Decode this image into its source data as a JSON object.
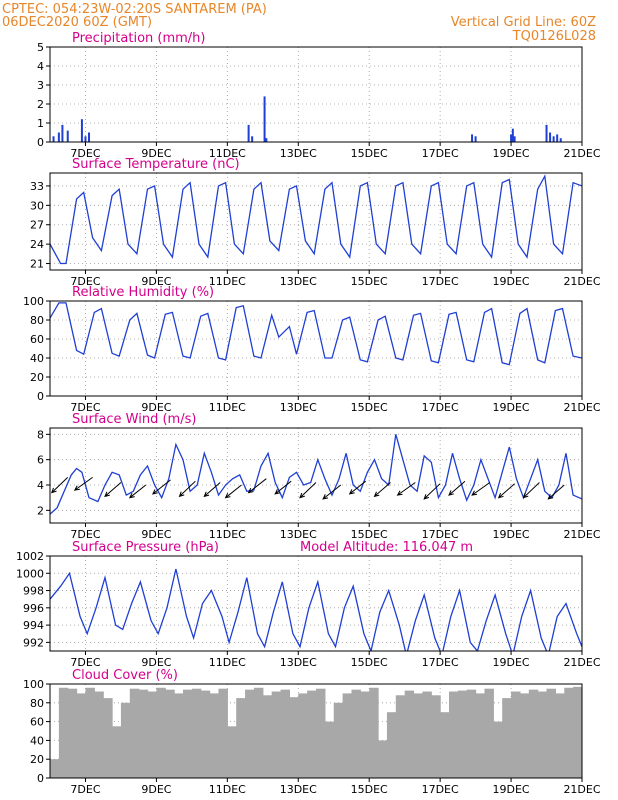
{
  "header": {
    "line1": "CPTEC:   054:23W-02:20S   SANTAREM (PA)",
    "line2": "06DEC2020 60Z (GMT)",
    "grid_note": "Vertical Grid Line: 60Z",
    "code": "TQ0126L028"
  },
  "colors": {
    "header": "#e8862a",
    "panel_title": "#d4008c",
    "series": "#1f3fd4",
    "cloud": "#a8a8a8",
    "arrows": "#000000"
  },
  "chart_data": [
    {
      "type": "bar",
      "title": "Precipitation (mm/h)",
      "xlim": [
        0,
        15
      ],
      "ylim": [
        0,
        5
      ],
      "yticks": [
        0,
        1,
        2,
        3,
        4,
        5
      ],
      "xticks": [
        1,
        3,
        5,
        7,
        9,
        11,
        13,
        15
      ],
      "xticklabels": [
        "7DEC",
        "9DEC",
        "11DEC",
        "13DEC",
        "15DEC",
        "17DEC",
        "19DEC",
        "21DEC"
      ],
      "x": [
        0.1,
        0.25,
        0.35,
        0.5,
        0.9,
        1.0,
        1.1,
        5.6,
        5.7,
        6.05,
        6.1,
        11.9,
        12.0,
        13.0,
        13.05,
        13.1,
        14.0,
        14.1,
        14.2,
        14.3,
        14.4
      ],
      "values": [
        0.3,
        0.5,
        0.9,
        0.6,
        1.2,
        0.3,
        0.5,
        0.9,
        0.3,
        2.4,
        0.2,
        0.4,
        0.3,
        0.4,
        0.7,
        0.3,
        0.9,
        0.5,
        0.3,
        0.4,
        0.2
      ]
    },
    {
      "type": "line",
      "title": "Surface Temperature (nC)",
      "xlim": [
        0,
        15
      ],
      "ylim": [
        20,
        35
      ],
      "yticks": [
        21,
        24,
        27,
        30,
        33
      ],
      "xticks": [
        1,
        3,
        5,
        7,
        9,
        11,
        13,
        15
      ],
      "xticklabels": [
        "7DEC",
        "9DEC",
        "11DEC",
        "13DEC",
        "15DEC",
        "17DEC",
        "19DEC",
        "21DEC"
      ],
      "x": [
        0.0,
        0.3,
        0.45,
        0.75,
        0.95,
        1.2,
        1.45,
        1.75,
        1.95,
        2.2,
        2.45,
        2.75,
        2.95,
        3.2,
        3.45,
        3.75,
        3.95,
        4.2,
        4.45,
        4.75,
        4.95,
        5.2,
        5.45,
        5.75,
        5.95,
        6.2,
        6.45,
        6.75,
        6.95,
        7.2,
        7.45,
        7.75,
        7.95,
        8.2,
        8.45,
        8.75,
        8.95,
        9.2,
        9.45,
        9.75,
        9.95,
        10.2,
        10.45,
        10.75,
        10.95,
        11.2,
        11.45,
        11.75,
        11.95,
        12.2,
        12.45,
        12.75,
        12.95,
        13.2,
        13.45,
        13.75,
        13.95,
        14.2,
        14.45,
        14.75,
        15.0
      ],
      "values": [
        24.0,
        21.0,
        21.0,
        31.0,
        32.0,
        25.0,
        23.0,
        31.5,
        32.5,
        24.0,
        22.5,
        32.5,
        33.0,
        24.0,
        22.0,
        32.5,
        33.5,
        24.0,
        22.0,
        33.0,
        33.5,
        24.0,
        22.5,
        32.5,
        33.5,
        24.5,
        23.0,
        32.5,
        33.0,
        24.5,
        22.5,
        32.5,
        33.5,
        24.0,
        22.0,
        33.0,
        33.5,
        24.0,
        22.5,
        33.0,
        33.5,
        24.0,
        22.5,
        33.0,
        33.5,
        24.0,
        22.5,
        33.0,
        33.5,
        24.0,
        22.0,
        33.5,
        34.0,
        24.0,
        22.0,
        32.5,
        34.5,
        24.0,
        22.5,
        33.5,
        33.0
      ]
    },
    {
      "type": "line",
      "title": "Relative Humidity (%)",
      "xlim": [
        0,
        15
      ],
      "ylim": [
        0,
        100
      ],
      "yticks": [
        0,
        20,
        40,
        60,
        80,
        100
      ],
      "xticks": [
        1,
        3,
        5,
        7,
        9,
        11,
        13,
        15
      ],
      "xticklabels": [
        "7DEC",
        "9DEC",
        "11DEC",
        "13DEC",
        "15DEC",
        "17DEC",
        "19DEC",
        "21DEC"
      ],
      "x": [
        0.0,
        0.25,
        0.45,
        0.75,
        0.95,
        1.25,
        1.45,
        1.75,
        1.95,
        2.25,
        2.45,
        2.75,
        2.95,
        3.25,
        3.45,
        3.75,
        3.95,
        4.25,
        4.45,
        4.75,
        4.95,
        5.25,
        5.45,
        5.75,
        5.95,
        6.25,
        6.45,
        6.75,
        6.95,
        7.25,
        7.45,
        7.75,
        7.95,
        8.25,
        8.45,
        8.75,
        8.95,
        9.25,
        9.45,
        9.75,
        9.95,
        10.25,
        10.45,
        10.75,
        10.95,
        11.25,
        11.45,
        11.75,
        11.95,
        12.25,
        12.45,
        12.75,
        12.95,
        13.25,
        13.45,
        13.75,
        13.95,
        14.25,
        14.45,
        14.75,
        15.0
      ],
      "values": [
        82,
        98,
        98,
        48,
        44,
        88,
        92,
        45,
        42,
        80,
        87,
        43,
        40,
        86,
        88,
        42,
        40,
        84,
        87,
        40,
        38,
        93,
        95,
        42,
        40,
        85,
        62,
        73,
        44,
        88,
        90,
        40,
        40,
        80,
        83,
        38,
        36,
        80,
        84,
        40,
        38,
        85,
        87,
        37,
        35,
        86,
        88,
        38,
        36,
        88,
        92,
        35,
        33,
        87,
        92,
        38,
        35,
        90,
        92,
        42,
        40
      ]
    },
    {
      "type": "line",
      "title": "Surface Wind (m/s)",
      "xlim": [
        0,
        15
      ],
      "ylim": [
        1,
        8.5
      ],
      "yticks": [
        2,
        4,
        6,
        8
      ],
      "xticks": [
        1,
        3,
        5,
        7,
        9,
        11,
        13,
        15
      ],
      "xticklabels": [
        "7DEC",
        "9DEC",
        "11DEC",
        "13DEC",
        "15DEC",
        "17DEC",
        "19DEC",
        "21DEC"
      ],
      "x": [
        0.0,
        0.2,
        0.4,
        0.6,
        0.75,
        0.9,
        1.1,
        1.35,
        1.55,
        1.75,
        1.95,
        2.15,
        2.35,
        2.55,
        2.75,
        2.95,
        3.15,
        3.35,
        3.55,
        3.75,
        3.95,
        4.15,
        4.35,
        4.55,
        4.75,
        4.95,
        5.15,
        5.35,
        5.55,
        5.75,
        5.95,
        6.15,
        6.35,
        6.55,
        6.75,
        6.95,
        7.15,
        7.35,
        7.55,
        7.75,
        7.95,
        8.15,
        8.35,
        8.55,
        8.75,
        8.95,
        9.15,
        9.35,
        9.55,
        9.75,
        9.95,
        10.15,
        10.35,
        10.55,
        10.75,
        10.95,
        11.15,
        11.35,
        11.55,
        11.75,
        11.95,
        12.15,
        12.35,
        12.55,
        12.75,
        12.95,
        13.15,
        13.35,
        13.55,
        13.75,
        13.95,
        14.15,
        14.35,
        14.55,
        14.75,
        15.0
      ],
      "values": [
        1.7,
        2.2,
        3.5,
        4.8,
        5.3,
        5.0,
        3.0,
        2.7,
        4.0,
        5.0,
        4.8,
        3.2,
        3.5,
        4.8,
        5.5,
        4.0,
        3.0,
        4.5,
        7.2,
        6.0,
        3.5,
        4.0,
        6.5,
        5.0,
        3.2,
        4.0,
        4.5,
        4.8,
        3.5,
        3.6,
        5.5,
        6.5,
        4.2,
        3.0,
        4.6,
        5.0,
        4.0,
        4.2,
        6.0,
        4.5,
        3.2,
        4.5,
        6.5,
        4.0,
        3.5,
        5.0,
        6.0,
        4.5,
        4.0,
        8.0,
        6.0,
        4.0,
        3.5,
        6.3,
        5.8,
        3.0,
        4.0,
        6.5,
        4.5,
        2.8,
        4.0,
        6.0,
        4.5,
        3.0,
        5.0,
        7.0,
        4.5,
        3.0,
        4.5,
        6.0,
        3.5,
        3.0,
        4.0,
        6.5,
        3.2,
        2.9
      ],
      "wind_vectors": {
        "x": [
          0.5,
          1.2,
          2.0,
          2.7,
          3.4,
          4.1,
          4.8,
          5.4,
          6.1,
          6.8,
          7.5,
          8.2,
          8.9,
          9.6,
          10.3,
          11.0,
          11.7,
          12.4,
          13.1,
          13.8,
          14.5
        ],
        "y": [
          4.6,
          4.6,
          4.2,
          4.0,
          4.4,
          4.3,
          4.2,
          4.0,
          4.5,
          4.3,
          4.2,
          4.0,
          4.3,
          4.2,
          4.2,
          4.1,
          4.3,
          4.2,
          4.1,
          4.2,
          4.0
        ],
        "dx": [
          -0.45,
          -0.5,
          -0.45,
          -0.45,
          -0.5,
          -0.45,
          -0.45,
          -0.45,
          -0.5,
          -0.45,
          -0.45,
          -0.5,
          -0.45,
          -0.45,
          -0.5,
          -0.45,
          -0.45,
          -0.5,
          -0.45,
          -0.45,
          -0.45
        ],
        "dy": [
          -1.2,
          -1.0,
          -1.1,
          -1.0,
          -1.1,
          -1.2,
          -1.1,
          -1.0,
          -1.1,
          -1.0,
          -1.2,
          -1.1,
          -1.0,
          -1.1,
          -1.0,
          -1.2,
          -1.1,
          -1.0,
          -1.1,
          -1.2,
          -1.1
        ]
      }
    },
    {
      "type": "line",
      "title": "Surface Pressure (hPa)",
      "annotation": "Model Altitude: 116.047 m",
      "xlim": [
        0,
        15
      ],
      "ylim": [
        991,
        1002
      ],
      "yticks": [
        992,
        994,
        996,
        998,
        1000,
        1002
      ],
      "xticks": [
        1,
        3,
        5,
        7,
        9,
        11,
        13,
        15
      ],
      "xticklabels": [
        "7DEC",
        "9DEC",
        "11DEC",
        "13DEC",
        "15DEC",
        "17DEC",
        "19DEC",
        "21DEC"
      ],
      "x": [
        0.0,
        0.3,
        0.55,
        0.85,
        1.05,
        1.3,
        1.55,
        1.85,
        2.05,
        2.3,
        2.55,
        2.85,
        3.05,
        3.3,
        3.55,
        3.85,
        4.05,
        4.3,
        4.55,
        4.85,
        5.05,
        5.3,
        5.55,
        5.85,
        6.05,
        6.3,
        6.55,
        6.85,
        7.05,
        7.3,
        7.55,
        7.85,
        8.05,
        8.3,
        8.55,
        8.85,
        9.05,
        9.3,
        9.55,
        9.85,
        10.05,
        10.3,
        10.55,
        10.85,
        11.05,
        11.3,
        11.55,
        11.85,
        12.05,
        12.3,
        12.55,
        12.85,
        13.05,
        13.3,
        13.55,
        13.85,
        14.05,
        14.3,
        14.55,
        14.85,
        15.0
      ],
      "values": [
        997.0,
        998.5,
        1000.0,
        995.0,
        993.0,
        996.0,
        999.5,
        994.0,
        993.5,
        996.5,
        999.0,
        994.5,
        993.0,
        996.0,
        1000.5,
        995.0,
        992.5,
        996.5,
        998.0,
        995.0,
        992.0,
        995.5,
        999.5,
        993.0,
        991.5,
        995.5,
        999.0,
        993.0,
        991.5,
        996.0,
        999.0,
        993.0,
        991.5,
        996.0,
        998.5,
        993.0,
        991.0,
        995.5,
        998.0,
        994.0,
        990.5,
        994.5,
        997.5,
        992.5,
        990.5,
        995.0,
        998.0,
        992.0,
        991.0,
        994.5,
        997.5,
        993.0,
        990.5,
        995.0,
        998.0,
        992.5,
        990.5,
        995.0,
        996.5,
        993.0,
        991.5
      ]
    },
    {
      "type": "bar",
      "title": "Cloud Cover (%)",
      "xlim": [
        0,
        15
      ],
      "ylim": [
        0,
        100
      ],
      "yticks": [
        0,
        20,
        40,
        60,
        80,
        100
      ],
      "xticks": [
        1,
        3,
        5,
        7,
        9,
        11,
        13,
        15
      ],
      "xticklabels": [
        "7DEC",
        "9DEC",
        "11DEC",
        "13DEC",
        "15DEC",
        "17DEC",
        "19DEC",
        "21DEC"
      ],
      "x": [
        0.0,
        0.25,
        0.5,
        0.75,
        1.0,
        1.25,
        1.5,
        1.75,
        2.0,
        2.25,
        2.5,
        2.75,
        3.0,
        3.25,
        3.5,
        3.75,
        4.0,
        4.25,
        4.5,
        4.75,
        5.0,
        5.25,
        5.5,
        5.75,
        6.0,
        6.25,
        6.5,
        6.75,
        7.0,
        7.25,
        7.5,
        7.75,
        8.0,
        8.25,
        8.5,
        8.75,
        9.0,
        9.25,
        9.5,
        9.75,
        10.0,
        10.25,
        10.5,
        10.75,
        11.0,
        11.25,
        11.5,
        11.75,
        12.0,
        12.25,
        12.5,
        12.75,
        13.0,
        13.25,
        13.5,
        13.75,
        14.0,
        14.25,
        14.5,
        14.75
      ],
      "values": [
        20,
        96,
        95,
        90,
        96,
        92,
        85,
        55,
        80,
        95,
        94,
        92,
        96,
        94,
        90,
        94,
        95,
        93,
        90,
        95,
        55,
        85,
        94,
        96,
        88,
        92,
        94,
        86,
        90,
        93,
        95,
        60,
        80,
        90,
        94,
        92,
        96,
        40,
        70,
        88,
        93,
        90,
        92,
        88,
        70,
        92,
        93,
        94,
        90,
        95,
        60,
        85,
        92,
        90,
        94,
        92,
        95,
        90,
        96,
        97
      ]
    }
  ]
}
